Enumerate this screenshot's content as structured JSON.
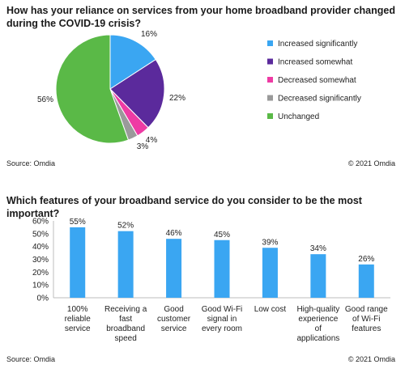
{
  "chart_data": [
    {
      "type": "pie",
      "title": "How has your reliance on services from your home broadband provider changed during the COVID-19 crisis?",
      "source": "Source: Omdia",
      "copyright": "© 2021 Omdia",
      "legend_position": "right",
      "slices": [
        {
          "name": "Increased significantly",
          "value": 16,
          "label": "16%",
          "color": "#3aa6f2"
        },
        {
          "name": "Increased somewhat",
          "value": 22,
          "label": "22%",
          "color": "#5b2a9c"
        },
        {
          "name": "Decreased somewhat",
          "value": 4,
          "label": "4%",
          "color": "#ee3ba4"
        },
        {
          "name": "Decreased significantly",
          "value": 3,
          "label": "3%",
          "color": "#9a9a9a"
        },
        {
          "name": "Unchanged",
          "value": 56,
          "label": "56%",
          "color": "#5ab947"
        }
      ]
    },
    {
      "type": "bar",
      "title": "Which features of your broadband service do you consider to be the most important?",
      "source": "Source: Omdia",
      "copyright": "© 2021 Omdia",
      "ylim": [
        0,
        60
      ],
      "yticks": [
        "0%",
        "10%",
        "20%",
        "30%",
        "40%",
        "50%",
        "60%"
      ],
      "bar_color": "#3aa6f2",
      "categories": [
        [
          "100%",
          "reliable",
          "service"
        ],
        [
          "Receiving a",
          "fast",
          "broadband",
          "speed"
        ],
        [
          "Good",
          "customer",
          "service"
        ],
        [
          "Good Wi-Fi",
          "signal in",
          "every room"
        ],
        [
          "Low cost"
        ],
        [
          "High-quality",
          "experience",
          "of",
          "applications"
        ],
        [
          "Good range",
          "of Wi-Fi",
          "features"
        ]
      ],
      "values": [
        55,
        52,
        46,
        45,
        39,
        34,
        26
      ],
      "data_labels": [
        "55%",
        "52%",
        "46%",
        "45%",
        "39%",
        "34%",
        "26%"
      ]
    }
  ]
}
